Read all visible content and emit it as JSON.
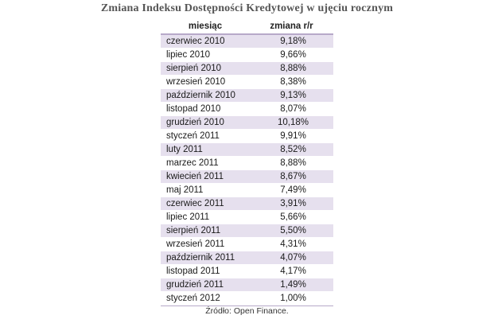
{
  "title": "Zmiana Indeksu Dostępności Kredytowej w ujęciu rocznym",
  "source": "Źródło: Open Finance.",
  "chart_data": {
    "type": "table",
    "title": "Zmiana Indeksu Dostępności Kredytowej w ujęciu rocznym",
    "columns": [
      "miesiąc",
      "zmiana r/r"
    ],
    "rows": [
      {
        "month": "czerwiec 2010",
        "value": "9,18%"
      },
      {
        "month": "lipiec 2010",
        "value": "9,66%"
      },
      {
        "month": "sierpień 2010",
        "value": "8,88%"
      },
      {
        "month": "wrzesień 2010",
        "value": "8,38%"
      },
      {
        "month": "październik 2010",
        "value": "9,13%"
      },
      {
        "month": "listopad 2010",
        "value": "8,07%"
      },
      {
        "month": "grudzień 2010",
        "value": "10,18%"
      },
      {
        "month": "styczeń 2011",
        "value": "9,91%"
      },
      {
        "month": "luty 2011",
        "value": "8,52%"
      },
      {
        "month": "marzec 2011",
        "value": "8,88%"
      },
      {
        "month": "kwiecień 2011",
        "value": "8,67%"
      },
      {
        "month": "maj 2011",
        "value": "7,49%"
      },
      {
        "month": "czerwiec 2011",
        "value": "3,91%"
      },
      {
        "month": "lipiec 2011",
        "value": "5,66%"
      },
      {
        "month": "sierpień 2011",
        "value": "5,50%"
      },
      {
        "month": "wrzesień 2011",
        "value": "4,31%"
      },
      {
        "month": "październik 2011",
        "value": "4,07%"
      },
      {
        "month": "listopad 2011",
        "value": "4,17%"
      },
      {
        "month": "grudzień 2011",
        "value": "1,49%"
      },
      {
        "month": "styczeń 2012",
        "value": "1,00%"
      }
    ]
  },
  "colors": {
    "stripe": "#e6e0ee",
    "rule": "#b7a9c9"
  }
}
